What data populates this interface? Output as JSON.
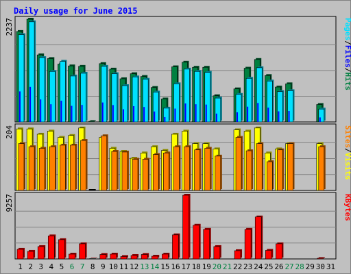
{
  "chart_data": {
    "type": "bar",
    "title": "Daily usage for June 2015",
    "categories": [
      "1",
      "2",
      "3",
      "4",
      "5",
      "6",
      "7",
      "8",
      "9",
      "10",
      "11",
      "12",
      "13",
      "14",
      "15",
      "16",
      "17",
      "18",
      "19",
      "20",
      "21",
      "22",
      "23",
      "24",
      "25",
      "26",
      "27",
      "28",
      "29",
      "30",
      "31"
    ],
    "weekend_days": [
      "6",
      "7",
      "13",
      "14",
      "20",
      "21",
      "27",
      "28"
    ],
    "panels": [
      {
        "id": "hits_files_pages",
        "ymax_label": "2237",
        "ymax": 2237,
        "right_labels": [
          "Pages",
          "/",
          "Files",
          "/",
          "Hits"
        ],
        "right_label_colors": [
          "#00e0ff",
          "#000000",
          "#0000ff",
          "#000000",
          "#008040"
        ],
        "series": [
          {
            "name": "Hits",
            "color": "#008040",
            "values": [
              1970,
              2237,
              1460,
              1380,
              1260,
              1220,
              1210,
              15,
              1270,
              1150,
              940,
              1050,
              990,
              750,
              500,
              1200,
              1300,
              1190,
              1190,
              570,
              0,
              720,
              1170,
              1360,
              1010,
              760,
              830,
              0,
              0,
              380,
              0
            ]
          },
          {
            "name": "Files",
            "color": "#0000ff",
            "values": [
              1900,
              2180,
              1400,
              1100,
              1320,
              1000,
              1060,
              0,
              1210,
              1050,
              790,
              980,
              930,
              650,
              300,
              830,
              1150,
              1100,
              1080,
              520,
              0,
              600,
              950,
              1180,
              890,
              660,
              680,
              0,
              0,
              280,
              0
            ]
          },
          {
            "name": "Pages",
            "color": "#00e0ff",
            "values": [
              1900,
              2180,
              1400,
              1100,
              1320,
              1000,
              1060,
              0,
              1210,
              1050,
              790,
              980,
              930,
              650,
              300,
              830,
              1150,
              1100,
              1080,
              520,
              0,
              600,
              950,
              1180,
              890,
              660,
              680,
              0,
              0,
              280,
              0
            ]
          }
        ]
      },
      {
        "id": "visits_sites",
        "ymax_label": "204",
        "ymax": 204,
        "right_labels": [
          "Sites",
          "/",
          "Visits"
        ],
        "right_label_colors": [
          "#ff8000",
          "#000000",
          "#ffff00"
        ],
        "series": [
          {
            "name": "Visits",
            "color": "#ffff00",
            "values": [
              197,
              197,
              180,
              190,
              170,
              176,
              200,
              0,
              170,
              135,
              125,
              103,
              120,
              140,
              128,
              180,
              190,
              150,
              150,
              133,
              0,
              194,
              190,
              200,
              120,
              133,
              150,
              0,
              0,
              150,
              0
            ]
          },
          {
            "name": "Sites",
            "color": "#ff8000",
            "values": [
              150,
              140,
              135,
              140,
              145,
              145,
              160,
              0,
              175,
              125,
              123,
              100,
              100,
              115,
              120,
              140,
              140,
              130,
              135,
              110,
              0,
              170,
              127,
              150,
              92,
              130,
              150,
              0,
              0,
              140,
              0
            ]
          }
        ]
      },
      {
        "id": "kbytes",
        "ymax_label": "9257",
        "ymax": 9257,
        "right_labels": [
          "KBytes"
        ],
        "right_label_colors": [
          "#ff0000"
        ],
        "series": [
          {
            "name": "KBytes",
            "color": "#ff0000",
            "values": [
              1400,
              1100,
              1800,
              3350,
              2800,
              700,
              2200,
              50,
              650,
              700,
              350,
              500,
              650,
              400,
              700,
              3500,
              9257,
              4900,
              4300,
              1800,
              0,
              1200,
              4300,
              6100,
              1250,
              2200,
              0,
              0,
              0,
              100,
              0
            ]
          }
        ]
      }
    ],
    "legend": "right"
  }
}
